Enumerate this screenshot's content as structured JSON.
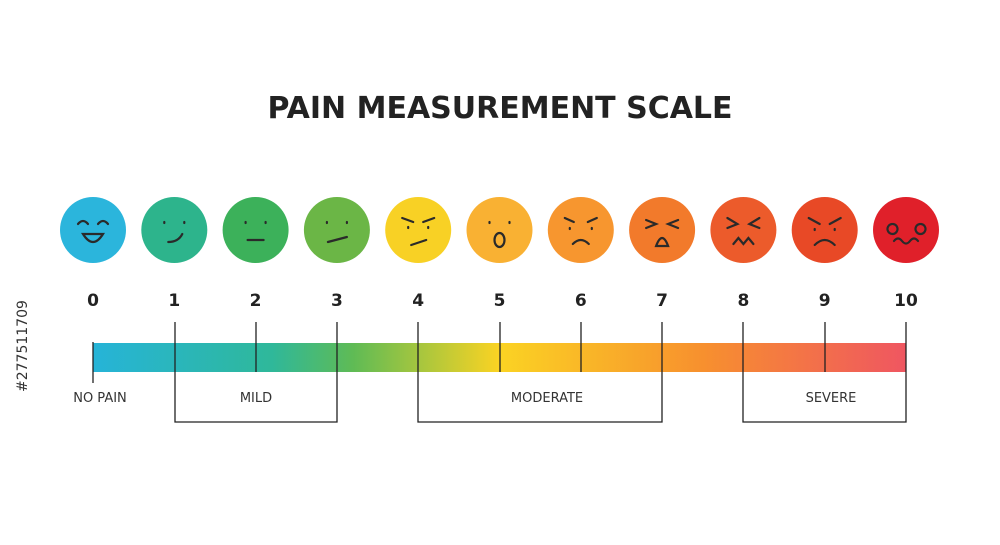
{
  "title": "PAIN MEASUREMENT SCALE",
  "levels": [
    0,
    1,
    2,
    3,
    4,
    5,
    6,
    7,
    8,
    9,
    10
  ],
  "ranges": [
    {
      "label": "NO PAIN"
    },
    {
      "label": "MILD"
    },
    {
      "label": "MODERATE"
    },
    {
      "label": "SEVERE"
    }
  ],
  "watermark": "#277511709"
}
